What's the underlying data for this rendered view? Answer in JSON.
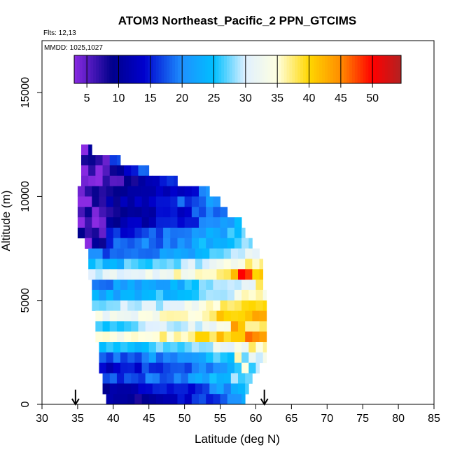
{
  "chart_data": {
    "type": "heatmap",
    "title": "ATOM3 Northeast_Pacific_2 PPN_GTCIMS",
    "subtitle_flights": "Flts: 12,13",
    "subtitle_dates": "MMDD: 1025,1027",
    "xlabel": "Latitude (deg N)",
    "ylabel": "Altitude (m)",
    "xlim": [
      30,
      85
    ],
    "ylim": [
      0,
      17500
    ],
    "x_ticks": [
      30,
      35,
      40,
      45,
      50,
      55,
      60,
      65,
      70,
      75,
      80,
      85
    ],
    "x_tick_labels": [
      "30",
      "35",
      "40",
      "45",
      "50",
      "55",
      "60",
      "65",
      "70",
      "75",
      "80",
      "85"
    ],
    "y_ticks": [
      0,
      5000,
      10000,
      15000
    ],
    "y_tick_labels": [
      "0",
      "5000",
      "10000",
      "15000"
    ],
    "colorbar": {
      "range": [
        3,
        54.5
      ],
      "ticks": [
        5,
        10,
        15,
        20,
        25,
        30,
        35,
        40,
        45,
        50
      ],
      "tick_labels": [
        "5",
        "10",
        "15",
        "20",
        "25",
        "30",
        "35",
        "40",
        "45",
        "50"
      ],
      "colors": [
        "#8a2be2",
        "#00008b",
        "#0000cd",
        "#1e90ff",
        "#00bfff",
        "#e0f0ff",
        "#ffffe0",
        "#ffd700",
        "#ff8c00",
        "#ff0000",
        "#b22222"
      ],
      "stops": [
        3,
        9,
        14,
        20,
        25,
        30,
        35,
        40,
        45,
        50,
        54.5
      ]
    },
    "flight_markers_lat": [
      34.7,
      61.2
    ],
    "band_step_m": 500,
    "lat_step_deg": 1.0,
    "bands": [
      {
        "alt": 12250,
        "lat_min": 35.5,
        "lat_max": 37.0,
        "val": 8
      },
      {
        "alt": 11750,
        "lat_min": 35.5,
        "lat_max": 41.0,
        "val": 11
      },
      {
        "alt": 11250,
        "lat_min": 35.5,
        "lat_max": 45.0,
        "val": 10
      },
      {
        "alt": 10750,
        "lat_min": 35.5,
        "lat_max": 49.0,
        "val": 8
      },
      {
        "alt": 10250,
        "lat_min": 35.0,
        "lat_max": 53.5,
        "val": 10
      },
      {
        "alt": 9750,
        "lat_min": 35.0,
        "lat_max": 55.0,
        "val": 13
      },
      {
        "alt": 9250,
        "lat_min": 35.0,
        "lat_max": 56.0,
        "val": 12
      },
      {
        "alt": 8750,
        "lat_min": 35.0,
        "lat_max": 58.0,
        "val": 14
      },
      {
        "alt": 8250,
        "lat_min": 35.0,
        "lat_max": 58.5,
        "val": 17
      },
      {
        "alt": 7750,
        "lat_min": 36.0,
        "lat_max": 59.5,
        "val": 20
      },
      {
        "alt": 7250,
        "lat_min": 36.5,
        "lat_max": 60.5,
        "val": 22
      },
      {
        "alt": 6750,
        "lat_min": 36.5,
        "lat_max": 61.0,
        "val": 28
      },
      {
        "alt": 6250,
        "lat_min": 36.5,
        "lat_max": 61.0,
        "val": 34
      },
      {
        "alt": 5750,
        "lat_min": 37.0,
        "lat_max": 61.0,
        "val": 24
      },
      {
        "alt": 5250,
        "lat_min": 37.0,
        "lat_max": 61.5,
        "val": 26
      },
      {
        "alt": 4750,
        "lat_min": 37.0,
        "lat_max": 61.5,
        "val": 32
      },
      {
        "alt": 4250,
        "lat_min": 37.5,
        "lat_max": 61.5,
        "val": 36
      },
      {
        "alt": 3750,
        "lat_min": 37.5,
        "lat_max": 61.5,
        "val": 30
      },
      {
        "alt": 3250,
        "lat_min": 37.5,
        "lat_max": 61.5,
        "val": 37
      },
      {
        "alt": 2750,
        "lat_min": 38.0,
        "lat_max": 61.5,
        "val": 28
      },
      {
        "alt": 2250,
        "lat_min": 38.0,
        "lat_max": 61.5,
        "val": 22
      },
      {
        "alt": 1750,
        "lat_min": 38.0,
        "lat_max": 60.5,
        "val": 18
      },
      {
        "alt": 1250,
        "lat_min": 38.5,
        "lat_max": 59.5,
        "val": 20
      },
      {
        "alt": 750,
        "lat_min": 38.5,
        "lat_max": 59.0,
        "val": 15
      },
      {
        "alt": 250,
        "lat_min": 39.0,
        "lat_max": 58.5,
        "val": 13
      }
    ],
    "hotspots": [
      {
        "lat": 58,
        "alt": 6250,
        "val": 50
      },
      {
        "lat": 59,
        "alt": 6250,
        "val": 48
      },
      {
        "lat": 57,
        "alt": 6250,
        "val": 42
      },
      {
        "lat": 56,
        "alt": 6250,
        "val": 38
      },
      {
        "lat": 60,
        "alt": 6250,
        "val": 40
      },
      {
        "lat": 57,
        "alt": 3750,
        "val": 44
      },
      {
        "lat": 58,
        "alt": 3750,
        "val": 41
      },
      {
        "lat": 56,
        "alt": 4250,
        "val": 40
      },
      {
        "lat": 57,
        "alt": 4750,
        "val": 38
      },
      {
        "lat": 55,
        "alt": 3250,
        "val": 42
      },
      {
        "lat": 56,
        "alt": 3250,
        "val": 39
      },
      {
        "lat": 57,
        "alt": 2250,
        "val": 36
      },
      {
        "lat": 58,
        "alt": 1750,
        "val": 35
      },
      {
        "lat": 60,
        "alt": 5750,
        "val": 38
      },
      {
        "lat": 59,
        "alt": 4750,
        "val": 40
      },
      {
        "lat": 58,
        "alt": 5250,
        "val": 36
      }
    ]
  }
}
